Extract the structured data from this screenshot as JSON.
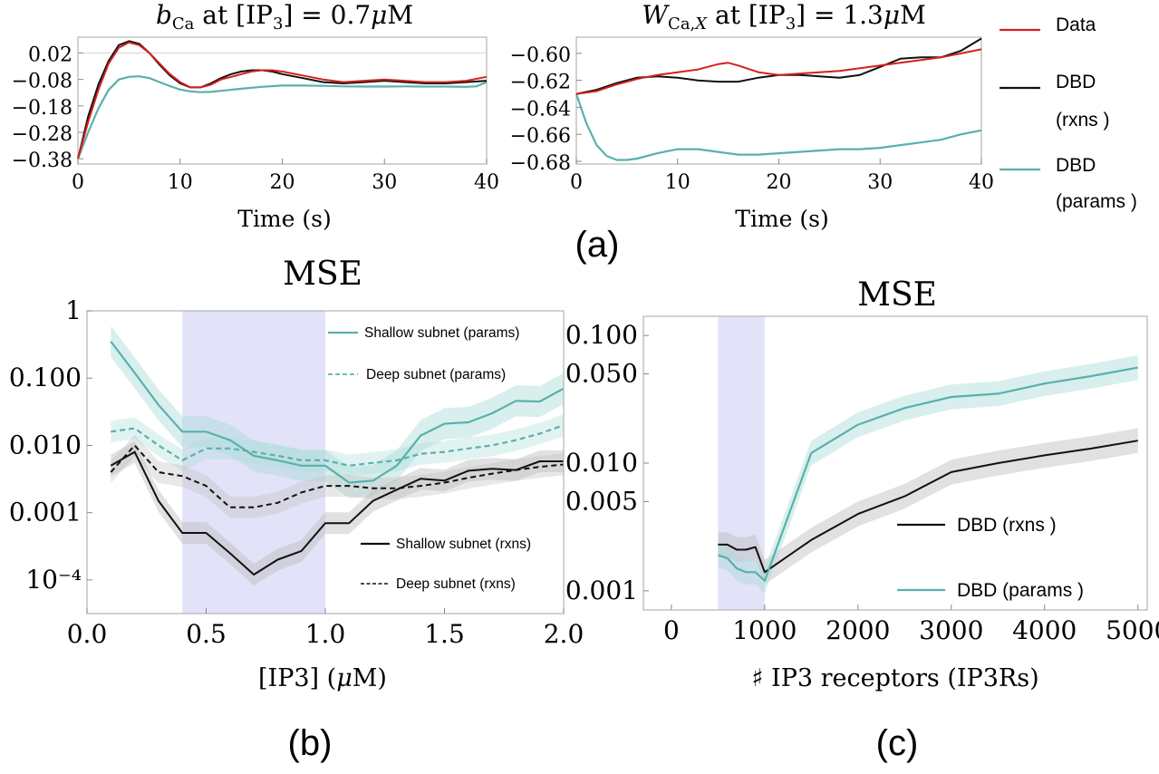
{
  "colors": {
    "data_red": "#d42020",
    "rxns_black": "#111111",
    "params_teal": "#5ab0ad",
    "band_grey": "#bdbdbd",
    "band_teal": "#a9dcd8",
    "highlight": "#d8d8f6"
  },
  "panel_a": {
    "label": "(a)",
    "legend": {
      "data": "Data",
      "rxns_1": "DBD",
      "rxns_2": "(rxns )",
      "params_1": "DBD",
      "params_2": "(params )"
    }
  },
  "panel_b": {
    "label": "(b)"
  },
  "panel_c": {
    "label": "(c)"
  },
  "chart_data": [
    {
      "type": "line",
      "title": "bCa at [IP3] = 0.7μM",
      "xlabel": "Time (s)",
      "ylabel": "",
      "xlim": [
        0,
        40
      ],
      "ylim": [
        -0.4,
        0.08
      ],
      "xticks": [
        "0",
        "10",
        "20",
        "30",
        "40"
      ],
      "yticks": [
        "0.02",
        "-0.08",
        "-0.18",
        "-0.28",
        "-0.38"
      ],
      "series": [
        {
          "name": "Data",
          "x": [
            0,
            1,
            2,
            3,
            4,
            5,
            6,
            7,
            8,
            9,
            10,
            11,
            12,
            13,
            14,
            15,
            16,
            17,
            18,
            19,
            20,
            22,
            24,
            26,
            28,
            30,
            32,
            34,
            36,
            38,
            40
          ],
          "y": [
            -0.38,
            -0.24,
            -0.12,
            -0.02,
            0.04,
            0.06,
            0.05,
            0.02,
            -0.02,
            -0.06,
            -0.09,
            -0.11,
            -0.11,
            -0.1,
            -0.08,
            -0.07,
            -0.06,
            -0.05,
            -0.045,
            -0.045,
            -0.05,
            -0.065,
            -0.08,
            -0.09,
            -0.085,
            -0.08,
            -0.085,
            -0.09,
            -0.09,
            -0.085,
            -0.07
          ]
        },
        {
          "name": "DBD (rxns)",
          "x": [
            0,
            1,
            2,
            3,
            4,
            5,
            6,
            7,
            8,
            9,
            10,
            11,
            12,
            13,
            14,
            15,
            16,
            17,
            18,
            19,
            20,
            22,
            24,
            26,
            28,
            30,
            32,
            34,
            36,
            38,
            40
          ],
          "y": [
            -0.38,
            -0.22,
            -0.1,
            -0.01,
            0.05,
            0.065,
            0.055,
            0.02,
            -0.025,
            -0.065,
            -0.095,
            -0.11,
            -0.11,
            -0.095,
            -0.075,
            -0.06,
            -0.05,
            -0.045,
            -0.045,
            -0.05,
            -0.06,
            -0.075,
            -0.09,
            -0.095,
            -0.09,
            -0.085,
            -0.09,
            -0.095,
            -0.095,
            -0.09,
            -0.085
          ]
        },
        {
          "name": "DBD (params)",
          "x": [
            0,
            1,
            2,
            3,
            4,
            5,
            6,
            7,
            8,
            9,
            10,
            11,
            12,
            13,
            14,
            16,
            18,
            20,
            22,
            24,
            26,
            28,
            30,
            32,
            34,
            36,
            38,
            39,
            40
          ],
          "y": [
            -0.38,
            -0.28,
            -0.19,
            -0.12,
            -0.08,
            -0.07,
            -0.068,
            -0.075,
            -0.09,
            -0.105,
            -0.118,
            -0.125,
            -0.128,
            -0.127,
            -0.123,
            -0.115,
            -0.108,
            -0.103,
            -0.103,
            -0.104,
            -0.106,
            -0.107,
            -0.107,
            -0.106,
            -0.107,
            -0.107,
            -0.108,
            -0.106,
            -0.09
          ]
        }
      ]
    },
    {
      "type": "line",
      "title": "WCa,X at [IP3] = 1.3μM",
      "xlabel": "Time (s)",
      "ylabel": "",
      "xlim": [
        0,
        40
      ],
      "ylim": [
        -0.682,
        -0.588
      ],
      "xticks": [
        "0",
        "10",
        "20",
        "30",
        "40"
      ],
      "yticks": [
        "-0.60",
        "-0.62",
        "-0.64",
        "-0.66",
        "-0.68"
      ],
      "series": [
        {
          "name": "Data",
          "x": [
            0,
            2,
            4,
            6,
            8,
            10,
            12,
            14,
            15,
            16,
            18,
            20,
            22,
            24,
            26,
            28,
            30,
            32,
            34,
            36,
            38,
            40
          ],
          "y": [
            -0.63,
            -0.628,
            -0.623,
            -0.619,
            -0.616,
            -0.614,
            -0.612,
            -0.608,
            -0.607,
            -0.609,
            -0.614,
            -0.616,
            -0.615,
            -0.614,
            -0.613,
            -0.611,
            -0.609,
            -0.607,
            -0.605,
            -0.603,
            -0.6,
            -0.597
          ]
        },
        {
          "name": "DBD (rxns)",
          "x": [
            0,
            2,
            4,
            6,
            8,
            10,
            12,
            14,
            16,
            18,
            20,
            22,
            24,
            26,
            28,
            30,
            32,
            34,
            36,
            38,
            40
          ],
          "y": [
            -0.63,
            -0.627,
            -0.622,
            -0.618,
            -0.617,
            -0.618,
            -0.62,
            -0.621,
            -0.621,
            -0.618,
            -0.616,
            -0.616,
            -0.617,
            -0.618,
            -0.616,
            -0.61,
            -0.604,
            -0.603,
            -0.603,
            -0.598,
            -0.589
          ]
        },
        {
          "name": "DBD (params)",
          "x": [
            0,
            1,
            2,
            3,
            4,
            5,
            6,
            8,
            10,
            12,
            14,
            16,
            18,
            20,
            22,
            24,
            26,
            28,
            30,
            32,
            34,
            36,
            38,
            40
          ],
          "y": [
            -0.63,
            -0.652,
            -0.668,
            -0.676,
            -0.679,
            -0.679,
            -0.678,
            -0.674,
            -0.671,
            -0.671,
            -0.673,
            -0.675,
            -0.675,
            -0.674,
            -0.673,
            -0.672,
            -0.671,
            -0.671,
            -0.67,
            -0.668,
            -0.666,
            -0.664,
            -0.66,
            -0.657
          ]
        }
      ]
    },
    {
      "type": "line",
      "title": "MSE",
      "xlabel": "[IP3] (μM)",
      "ylabel": "",
      "xlim": [
        0,
        2.0
      ],
      "ylim_log10": [
        -4.5,
        0
      ],
      "y_scale": "log",
      "xticks": [
        "0.0",
        "0.5",
        "1.0",
        "1.5",
        "2.0"
      ],
      "yticks": [
        "1",
        "0.100",
        "0.010",
        "0.001",
        "10⁻⁴"
      ],
      "highlight_x": [
        0.4,
        1.0
      ],
      "legend": [
        "Shallow subnet (params)",
        "Deep subnet (params)",
        "Shallow subnet (rxns)",
        "Deep subnet (rxns)"
      ],
      "series": [
        {
          "name": "Shallow subnet (params)",
          "style": "solid-teal",
          "x": [
            0.1,
            0.2,
            0.3,
            0.4,
            0.5,
            0.6,
            0.7,
            0.8,
            0.9,
            1.0,
            1.1,
            1.2,
            1.3,
            1.4,
            1.5,
            1.6,
            1.7,
            1.8,
            1.9,
            2.0
          ],
          "y": [
            0.35,
            0.12,
            0.04,
            0.016,
            0.016,
            0.012,
            0.007,
            0.006,
            0.005,
            0.005,
            0.0028,
            0.003,
            0.005,
            0.014,
            0.021,
            0.022,
            0.03,
            0.046,
            0.045,
            0.07
          ]
        },
        {
          "name": "Deep subnet (params)",
          "style": "dashed-teal",
          "x": [
            0.1,
            0.2,
            0.3,
            0.4,
            0.5,
            0.6,
            0.7,
            0.8,
            0.9,
            1.0,
            1.1,
            1.2,
            1.3,
            1.4,
            1.5,
            1.6,
            1.7,
            1.8,
            1.9,
            2.0
          ],
          "y": [
            0.016,
            0.018,
            0.01,
            0.006,
            0.009,
            0.009,
            0.008,
            0.007,
            0.006,
            0.006,
            0.005,
            0.0055,
            0.006,
            0.0075,
            0.008,
            0.009,
            0.01,
            0.012,
            0.015,
            0.02
          ]
        },
        {
          "name": "Shallow subnet (rxns)",
          "style": "solid-black",
          "x": [
            0.1,
            0.2,
            0.3,
            0.4,
            0.5,
            0.6,
            0.7,
            0.8,
            0.9,
            1.0,
            1.1,
            1.2,
            1.3,
            1.4,
            1.5,
            1.6,
            1.7,
            1.8,
            1.9,
            2.0
          ],
          "y": [
            0.005,
            0.008,
            0.0015,
            0.0005,
            0.0005,
            0.00025,
            0.00012,
            0.0002,
            0.00027,
            0.0007,
            0.0007,
            0.0015,
            0.0022,
            0.0032,
            0.003,
            0.0042,
            0.0045,
            0.0043,
            0.0058,
            0.0058
          ]
        },
        {
          "name": "Deep subnet (rxns)",
          "style": "dashed-black",
          "x": [
            0.1,
            0.2,
            0.3,
            0.4,
            0.5,
            0.6,
            0.7,
            0.8,
            0.9,
            1.0,
            1.1,
            1.2,
            1.3,
            1.4,
            1.5,
            1.6,
            1.7,
            1.8,
            1.9,
            2.0
          ],
          "y": [
            0.004,
            0.01,
            0.004,
            0.0035,
            0.0025,
            0.0012,
            0.0012,
            0.0014,
            0.002,
            0.0025,
            0.0025,
            0.0023,
            0.0023,
            0.0025,
            0.0028,
            0.0033,
            0.0038,
            0.0043,
            0.0048,
            0.0052
          ]
        }
      ]
    },
    {
      "type": "line",
      "title": "MSE",
      "xlabel": "♯ IP3 receptors (IP3Rs)",
      "ylabel": "",
      "xlim": [
        -300,
        5100
      ],
      "ylim_log10": [
        -3.15,
        -0.85
      ],
      "y_scale": "log",
      "xticks": [
        "0",
        "1000",
        "2000",
        "3000",
        "4000",
        "5000"
      ],
      "yticks": [
        "0.100",
        "0.050",
        "0.010",
        "0.005",
        "0.001"
      ],
      "highlight_x": [
        500,
        1000
      ],
      "legend": [
        "DBD (rxns )",
        "DBD (params )"
      ],
      "series": [
        {
          "name": "DBD (rxns )",
          "style": "solid-black",
          "x": [
            500,
            600,
            700,
            800,
            900,
            1000,
            1500,
            2000,
            2500,
            3000,
            3500,
            4000,
            4500,
            5000
          ],
          "y": [
            0.0023,
            0.0023,
            0.0021,
            0.0021,
            0.0022,
            0.0014,
            0.0025,
            0.004,
            0.0055,
            0.0085,
            0.01,
            0.0115,
            0.013,
            0.015
          ]
        },
        {
          "name": "DBD (params )",
          "style": "solid-teal",
          "x": [
            500,
            600,
            700,
            800,
            900,
            1000,
            1500,
            2000,
            2500,
            3000,
            3500,
            4000,
            4500,
            5000
          ],
          "y": [
            0.0019,
            0.0018,
            0.0015,
            0.0014,
            0.0014,
            0.0012,
            0.012,
            0.02,
            0.027,
            0.033,
            0.035,
            0.042,
            0.048,
            0.056
          ]
        }
      ]
    }
  ]
}
